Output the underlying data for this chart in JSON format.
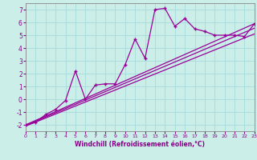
{
  "title": "",
  "xlabel": "Windchill (Refroidissement éolien,°C)",
  "bg_color": "#cceee8",
  "grid_color": "#aadddd",
  "line_color": "#990099",
  "xlim": [
    0,
    23
  ],
  "ylim": [
    -2.5,
    7.5
  ],
  "xticks": [
    0,
    1,
    2,
    3,
    4,
    5,
    6,
    7,
    8,
    9,
    10,
    11,
    12,
    13,
    14,
    15,
    16,
    17,
    18,
    19,
    20,
    21,
    22,
    23
  ],
  "yticks": [
    -2,
    -1,
    0,
    1,
    2,
    3,
    4,
    5,
    6,
    7
  ],
  "data_x": [
    0,
    1,
    2,
    3,
    4,
    5,
    6,
    7,
    8,
    9,
    10,
    11,
    12,
    13,
    14,
    15,
    16,
    17,
    18,
    19,
    20,
    21,
    22,
    23
  ],
  "data_y": [
    -2,
    -1.8,
    -1.2,
    -0.8,
    -0.1,
    2.2,
    0.0,
    1.1,
    1.2,
    1.2,
    2.7,
    4.7,
    3.2,
    7.0,
    7.1,
    5.7,
    6.3,
    5.5,
    5.3,
    5.0,
    5.0,
    5.0,
    4.9,
    5.9
  ],
  "line1_x": [
    0,
    23
  ],
  "line1_y": [
    -2.0,
    5.9
  ],
  "line2_x": [
    0,
    23
  ],
  "line2_y": [
    -2.05,
    5.55
  ],
  "line3_x": [
    0,
    23
  ],
  "line3_y": [
    -2.1,
    5.1
  ]
}
